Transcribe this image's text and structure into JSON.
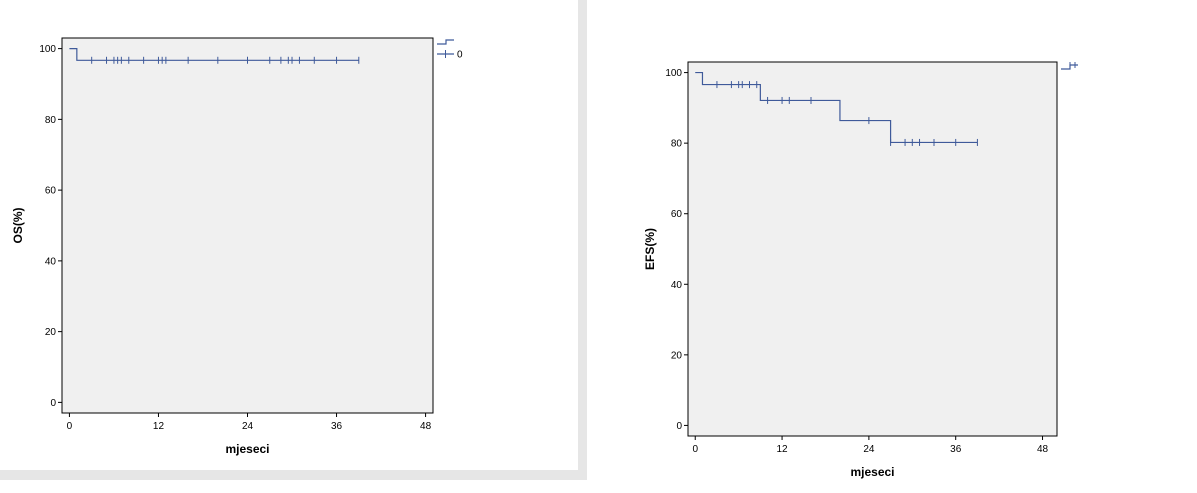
{
  "chart_data": [
    {
      "type": "line",
      "subtype": "kaplan-meier",
      "ylabel": "OS(%)",
      "xlabel": "mjeseci",
      "xlim": [
        -1,
        49
      ],
      "ylim": [
        -3,
        103
      ],
      "xticks": [
        0,
        12,
        24,
        36,
        48
      ],
      "yticks": [
        0,
        20,
        40,
        60,
        80,
        100
      ],
      "legend": {
        "placement": "outside-top-right",
        "entries": [
          "",
          "0"
        ]
      },
      "color": "#3f5a9a",
      "steps": [
        [
          0,
          100
        ],
        [
          1,
          96.7
        ],
        [
          39,
          96.7
        ]
      ],
      "censored": [
        [
          3,
          96.7
        ],
        [
          5,
          96.7
        ],
        [
          6,
          96.7
        ],
        [
          6.5,
          96.7
        ],
        [
          7,
          96.7
        ],
        [
          8,
          96.7
        ],
        [
          10,
          96.7
        ],
        [
          12,
          96.7
        ],
        [
          12.5,
          96.7
        ],
        [
          13,
          96.7
        ],
        [
          16,
          96.7
        ],
        [
          20,
          96.7
        ],
        [
          24,
          96.7
        ],
        [
          27,
          96.7
        ],
        [
          28.5,
          96.7
        ],
        [
          29.5,
          96.7
        ],
        [
          30,
          96.7
        ],
        [
          31,
          96.7
        ],
        [
          33,
          96.7
        ],
        [
          36,
          96.7
        ],
        [
          39,
          96.7
        ]
      ]
    },
    {
      "type": "line",
      "subtype": "kaplan-meier",
      "ylabel": "EFS(%)",
      "xlabel": "mjeseci",
      "xlim": [
        -1,
        50
      ],
      "ylim": [
        -3,
        103
      ],
      "xticks": [
        0,
        12,
        24,
        36,
        48
      ],
      "yticks": [
        0,
        20,
        40,
        60,
        80,
        100
      ],
      "legend": {
        "placement": "outside-top-right",
        "entries": [
          ""
        ]
      },
      "color": "#3f5a9a",
      "steps": [
        [
          0,
          100
        ],
        [
          1,
          96.6
        ],
        [
          9,
          96.6
        ],
        [
          9,
          92.1
        ],
        [
          20,
          92.1
        ],
        [
          20,
          86.4
        ],
        [
          27,
          86.4
        ],
        [
          27,
          80.2
        ],
        [
          39,
          80.2
        ]
      ],
      "censored": [
        [
          3,
          96.6
        ],
        [
          5,
          96.6
        ],
        [
          6,
          96.6
        ],
        [
          6.5,
          96.6
        ],
        [
          7.5,
          96.6
        ],
        [
          8.5,
          96.6
        ],
        [
          10,
          92.1
        ],
        [
          12,
          92.1
        ],
        [
          13,
          92.1
        ],
        [
          16,
          92.1
        ],
        [
          24,
          86.4
        ],
        [
          27,
          80.2
        ],
        [
          29,
          80.2
        ],
        [
          30,
          80.2
        ],
        [
          31,
          80.2
        ],
        [
          33,
          80.2
        ],
        [
          36,
          80.2
        ],
        [
          39,
          80.2
        ]
      ]
    }
  ]
}
